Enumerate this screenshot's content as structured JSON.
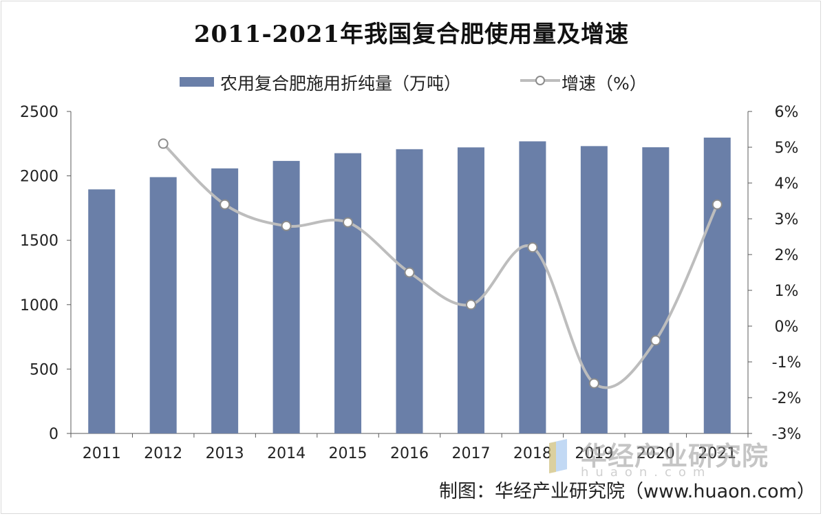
{
  "title": "2011-2021年我国复合肥使用量及增速",
  "source": "制图：华经产业研究院（www.huaon.com）",
  "watermark": {
    "text": "华经产业研究院",
    "url": "huaon.com"
  },
  "legend": {
    "bar_label": "农用复合肥施用折纯量（万吨）",
    "line_label": "增速（%）"
  },
  "colors": {
    "bar": "#6a7fa8",
    "line": "#bdbdbd",
    "marker_fill": "#ffffff",
    "marker_stroke": "#8c8c8c",
    "axis": "#595959"
  },
  "chart_data": {
    "type": "bar",
    "title": "2011-2021年我国复合肥使用量及增速",
    "categories": [
      "2011",
      "2012",
      "2013",
      "2014",
      "2015",
      "2016",
      "2017",
      "2018",
      "2019",
      "2020",
      "2021"
    ],
    "series": [
      {
        "name": "农用复合肥施用折纯量（万吨）",
        "type": "bar",
        "axis": "left",
        "values": [
          1895,
          1990,
          2058,
          2116,
          2176,
          2207,
          2221,
          2268,
          2231,
          2222,
          2297
        ]
      },
      {
        "name": "增速（%）",
        "type": "line",
        "axis": "right",
        "values": [
          null,
          5.1,
          3.4,
          2.8,
          2.9,
          1.5,
          0.6,
          2.2,
          -1.6,
          -0.4,
          3.4
        ]
      }
    ],
    "y_left": {
      "min": 0,
      "max": 2500,
      "ticks": [
        "0",
        "500",
        "1000",
        "1500",
        "2000",
        "2500"
      ]
    },
    "y_right": {
      "min": -3,
      "max": 6,
      "ticks": [
        "-3%",
        "-2%",
        "-1%",
        "0%",
        "1%",
        "2%",
        "3%",
        "4%",
        "5%",
        "6%"
      ]
    },
    "grid": false,
    "legend_position": "top"
  }
}
